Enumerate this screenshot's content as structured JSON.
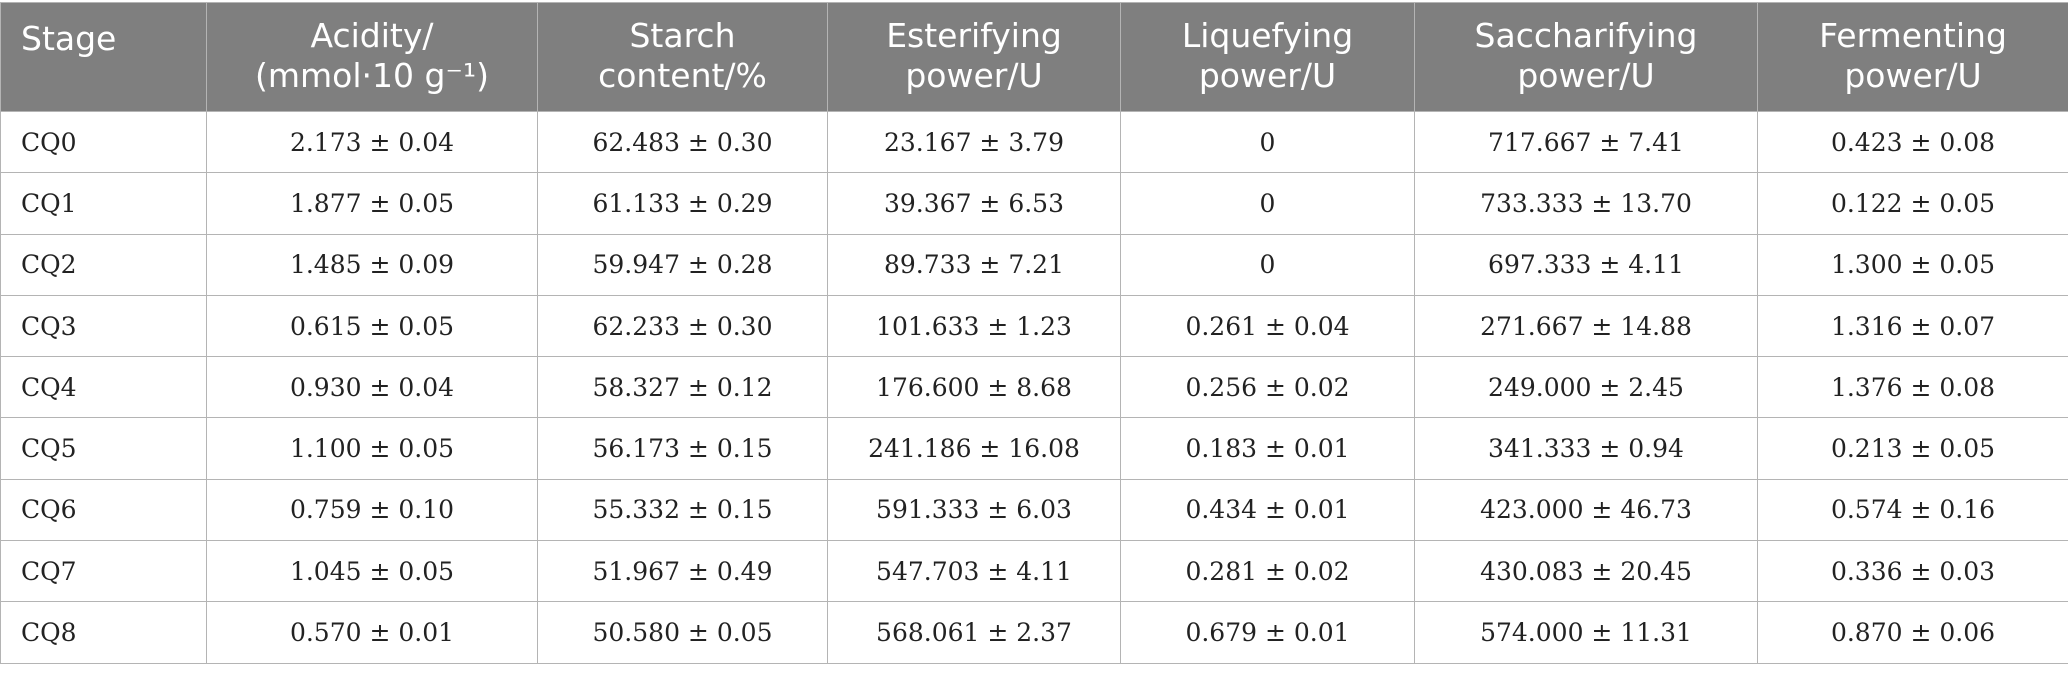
{
  "table": {
    "headers": [
      [
        "Stage"
      ],
      [
        "Acidity/",
        "(mmol·10 g⁻¹)"
      ],
      [
        "Starch",
        "content/%"
      ],
      [
        "Esterifying",
        "power/U"
      ],
      [
        "Liquefying",
        "power/U"
      ],
      [
        "Saccharifying",
        "power/U"
      ],
      [
        "Fermenting",
        "power/U"
      ]
    ],
    "rows": [
      [
        "CQ0",
        "2.173 ± 0.04",
        "62.483 ± 0.30",
        "23.167 ± 3.79",
        "0",
        "717.667 ± 7.41",
        "0.423 ± 0.08"
      ],
      [
        "CQ1",
        "1.877 ± 0.05",
        "61.133 ± 0.29",
        "39.367 ± 6.53",
        "0",
        "733.333 ± 13.70",
        "0.122 ± 0.05"
      ],
      [
        "CQ2",
        "1.485 ± 0.09",
        "59.947 ± 0.28",
        "89.733 ± 7.21",
        "0",
        "697.333 ± 4.11",
        "1.300 ± 0.05"
      ],
      [
        "CQ3",
        "0.615 ± 0.05",
        "62.233 ± 0.30",
        "101.633 ± 1.23",
        "0.261 ± 0.04",
        "271.667 ± 14.88",
        "1.316 ± 0.07"
      ],
      [
        "CQ4",
        "0.930 ± 0.04",
        "58.327 ± 0.12",
        "176.600 ± 8.68",
        "0.256 ± 0.02",
        "249.000 ± 2.45",
        "1.376 ± 0.08"
      ],
      [
        "CQ5",
        "1.100 ± 0.05",
        "56.173 ± 0.15",
        "241.186 ± 16.08",
        "0.183 ± 0.01",
        "341.333 ± 0.94",
        "0.213 ± 0.05"
      ],
      [
        "CQ6",
        "0.759 ± 0.10",
        "55.332 ± 0.15",
        "591.333 ± 6.03",
        "0.434 ± 0.01",
        "423.000 ± 46.73",
        "0.574 ± 0.16"
      ],
      [
        "CQ7",
        "1.045 ± 0.05",
        "51.967 ± 0.49",
        "547.703 ± 4.11",
        "0.281 ± 0.02",
        "430.083 ± 20.45",
        "0.336 ± 0.03"
      ],
      [
        "CQ8",
        "0.570 ± 0.01",
        "50.580 ± 0.05",
        "568.061 ± 2.37",
        "0.679 ± 0.01",
        "574.000 ± 11.31",
        "0.870 ± 0.06"
      ]
    ]
  },
  "colors": {
    "header_bg": "#7f7f7f",
    "header_text": "#ffffff",
    "grid_line": "#b4b4b4",
    "body_text": "#222222"
  }
}
